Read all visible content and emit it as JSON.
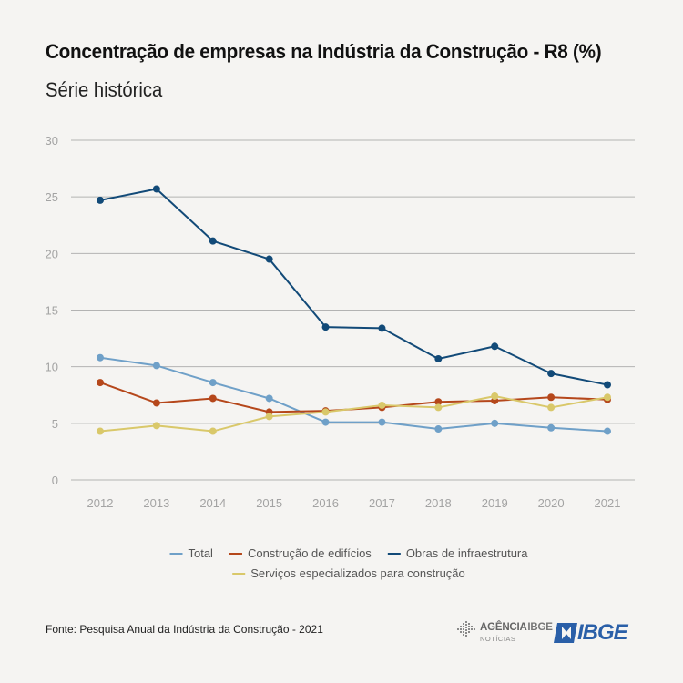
{
  "header": {
    "title": "Concentração de empresas na Indústria da Construção - R8 (%)",
    "subtitle": "Série histórica"
  },
  "colors": {
    "grid": "#b3b3b3",
    "axis_text": "#a3a3a3",
    "legend_text": "#555555",
    "background": "#f5f4f2"
  },
  "chart_data": {
    "type": "line",
    "title": "Concentração de empresas na Indústria da Construção - R8 (%)",
    "subtitle": "Série histórica",
    "x": [
      "2012",
      "2013",
      "2014",
      "2015",
      "2016",
      "2017",
      "2018",
      "2019",
      "2020",
      "2021"
    ],
    "ylim": [
      0,
      30
    ],
    "yticks": [
      0,
      5,
      10,
      15,
      20,
      25,
      30
    ],
    "grid": true,
    "legend_position": "bottom",
    "series": [
      {
        "name": "Total",
        "color": "#6fa0c8",
        "values": [
          10.8,
          10.1,
          8.6,
          7.2,
          5.1,
          5.1,
          4.5,
          5.0,
          4.6,
          4.3
        ]
      },
      {
        "name": "Construção de edifícios",
        "color": "#b5471b",
        "values": [
          8.6,
          6.8,
          7.2,
          6.0,
          6.1,
          6.4,
          6.9,
          7.0,
          7.3,
          7.1
        ]
      },
      {
        "name": "Obras de infraestrutura",
        "color": "#124a78",
        "values": [
          24.7,
          25.7,
          21.1,
          19.5,
          13.5,
          13.4,
          10.7,
          11.8,
          9.4,
          8.4
        ]
      },
      {
        "name": "Serviços especializados para construção",
        "color": "#d9c86a",
        "values": [
          4.3,
          4.8,
          4.3,
          5.6,
          6.0,
          6.6,
          6.4,
          7.4,
          6.4,
          7.3
        ]
      }
    ]
  },
  "footer": {
    "source": "Fonte: Pesquisa Anual da Indústria da Construção - 2021",
    "agencia_line1": "AGÊNCIA",
    "agencia_ibge": "IBGE",
    "agencia_line2": "NOTÍCIAS",
    "ibge_logo": "IBGE"
  }
}
